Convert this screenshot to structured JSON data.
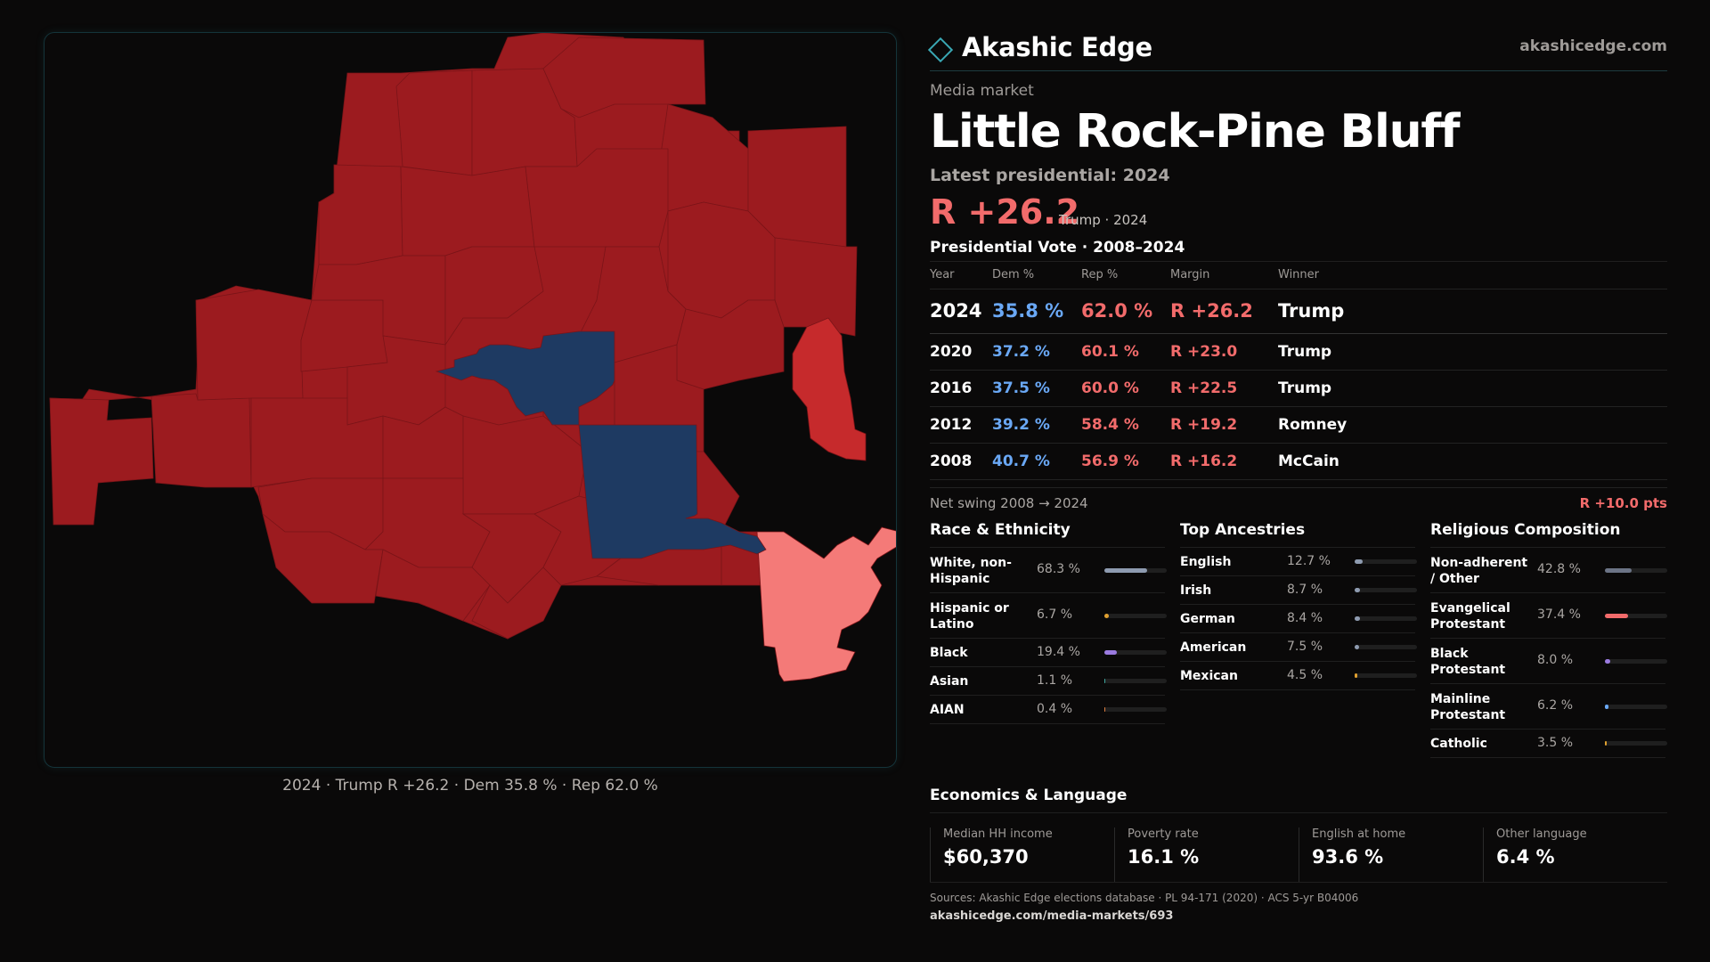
{
  "map": {
    "caption": "2024 · Trump R +26.2 · Dem 35.8 % · Rep 62.0 %",
    "colors": {
      "rep_strong": "#9c1b1f",
      "rep_medium": "#c62a2c",
      "rep_light": "#f47a78",
      "dem": "#1e3a62"
    }
  },
  "header": {
    "brand": "Akashic Edge",
    "site": "akashicedge.com"
  },
  "market": {
    "kicker": "Media market",
    "title": "Little Rock-Pine Bluff",
    "latest_label": "Latest presidential: 2024",
    "margin": "R +26.2",
    "margin_sub": "Trump · 2024"
  },
  "presidential": {
    "title": "Presidential Vote · 2008–2024",
    "columns": [
      "Year",
      "Dem %",
      "Rep %",
      "Margin",
      "Winner"
    ],
    "rows": [
      {
        "year": "2024",
        "dem": "35.8 %",
        "rep": "62.0 %",
        "margin": "R +26.2",
        "winner": "Trump"
      },
      {
        "year": "2020",
        "dem": "37.2 %",
        "rep": "60.1 %",
        "margin": "R +23.0",
        "winner": "Trump"
      },
      {
        "year": "2016",
        "dem": "37.5 %",
        "rep": "60.0 %",
        "margin": "R +22.5",
        "winner": "Trump"
      },
      {
        "year": "2012",
        "dem": "39.2 %",
        "rep": "58.4 %",
        "margin": "R +19.2",
        "winner": "Romney"
      },
      {
        "year": "2008",
        "dem": "40.7 %",
        "rep": "56.9 %",
        "margin": "R +16.2",
        "winner": "McCain"
      }
    ],
    "swing_label": "Net swing 2008 → 2024",
    "swing_value": "R +10.0 pts"
  },
  "race": {
    "title": "Race & Ethnicity",
    "items": [
      {
        "label": "White, non-Hispanic",
        "pct": "68.3 %",
        "value": 68.3,
        "color": "#8e9bb0"
      },
      {
        "label": "Hispanic or Latino",
        "pct": "6.7 %",
        "value": 6.7,
        "color": "#e0a030"
      },
      {
        "label": "Black",
        "pct": "19.4 %",
        "value": 19.4,
        "color": "#9b7be0"
      },
      {
        "label": "Asian",
        "pct": "1.1 %",
        "value": 1.1,
        "color": "#3fa8a0"
      },
      {
        "label": "AIAN",
        "pct": "0.4 %",
        "value": 0.4,
        "color": "#e08040"
      }
    ]
  },
  "ancestry": {
    "title": "Top Ancestries",
    "items": [
      {
        "label": "English",
        "pct": "12.7 %",
        "value": 12.7,
        "color": "#8e9bb0"
      },
      {
        "label": "Irish",
        "pct": "8.7 %",
        "value": 8.7,
        "color": "#8e9bb0"
      },
      {
        "label": "German",
        "pct": "8.4 %",
        "value": 8.4,
        "color": "#8e9bb0"
      },
      {
        "label": "American",
        "pct": "7.5 %",
        "value": 7.5,
        "color": "#8e9bb0"
      },
      {
        "label": "Mexican",
        "pct": "4.5 %",
        "value": 4.5,
        "color": "#e0a030"
      }
    ]
  },
  "religion": {
    "title": "Religious Composition",
    "items": [
      {
        "label": "Non-adherent / Other",
        "pct": "42.8 %",
        "value": 42.8,
        "color": "#6c7486"
      },
      {
        "label": "Evangelical Protestant",
        "pct": "37.4 %",
        "value": 37.4,
        "color": "#f26b6b"
      },
      {
        "label": "Black Protestant",
        "pct": "8.0 %",
        "value": 8.0,
        "color": "#9b7be0"
      },
      {
        "label": "Mainline Protestant",
        "pct": "6.2 %",
        "value": 6.2,
        "color": "#6aa8f5"
      },
      {
        "label": "Catholic",
        "pct": "3.5 %",
        "value": 3.5,
        "color": "#e0a030"
      }
    ]
  },
  "economics": {
    "title": "Economics & Language",
    "cells": [
      {
        "label": "Median HH income",
        "value": "$60,370"
      },
      {
        "label": "Poverty rate",
        "value": "16.1 %"
      },
      {
        "label": "English at home",
        "value": "93.6 %"
      },
      {
        "label": "Other language",
        "value": "6.4 %"
      }
    ]
  },
  "footer": {
    "sources": "Sources: Akashic Edge elections database · PL 94-171 (2020) · ACS 5-yr B04006",
    "url": "akashicedge.com/media-markets/693"
  }
}
